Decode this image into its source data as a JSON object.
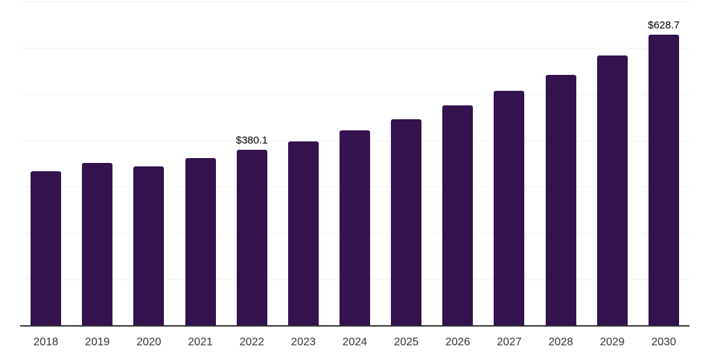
{
  "chart_data": {
    "type": "bar",
    "categories": [
      "2018",
      "2019",
      "2020",
      "2021",
      "2022",
      "2023",
      "2024",
      "2025",
      "2026",
      "2027",
      "2028",
      "2029",
      "2030"
    ],
    "values": [
      333.9,
      351.8,
      344.5,
      362.2,
      380.1,
      398.0,
      421.8,
      445.7,
      475.5,
      506.8,
      541.1,
      582.8,
      628.7
    ],
    "data_labels": {
      "2022": "$380.1",
      "2030": "$628.7"
    },
    "title": "",
    "xlabel": "",
    "ylabel": "",
    "ylim": [
      0,
      700
    ],
    "grid_step": 100,
    "grid": true,
    "legend": false,
    "bar_color": "#33124d",
    "grid_color": "#f2f2f2",
    "axis_color": "#333333",
    "value_label_color": "#000000",
    "tick_label_color": "#333333"
  }
}
